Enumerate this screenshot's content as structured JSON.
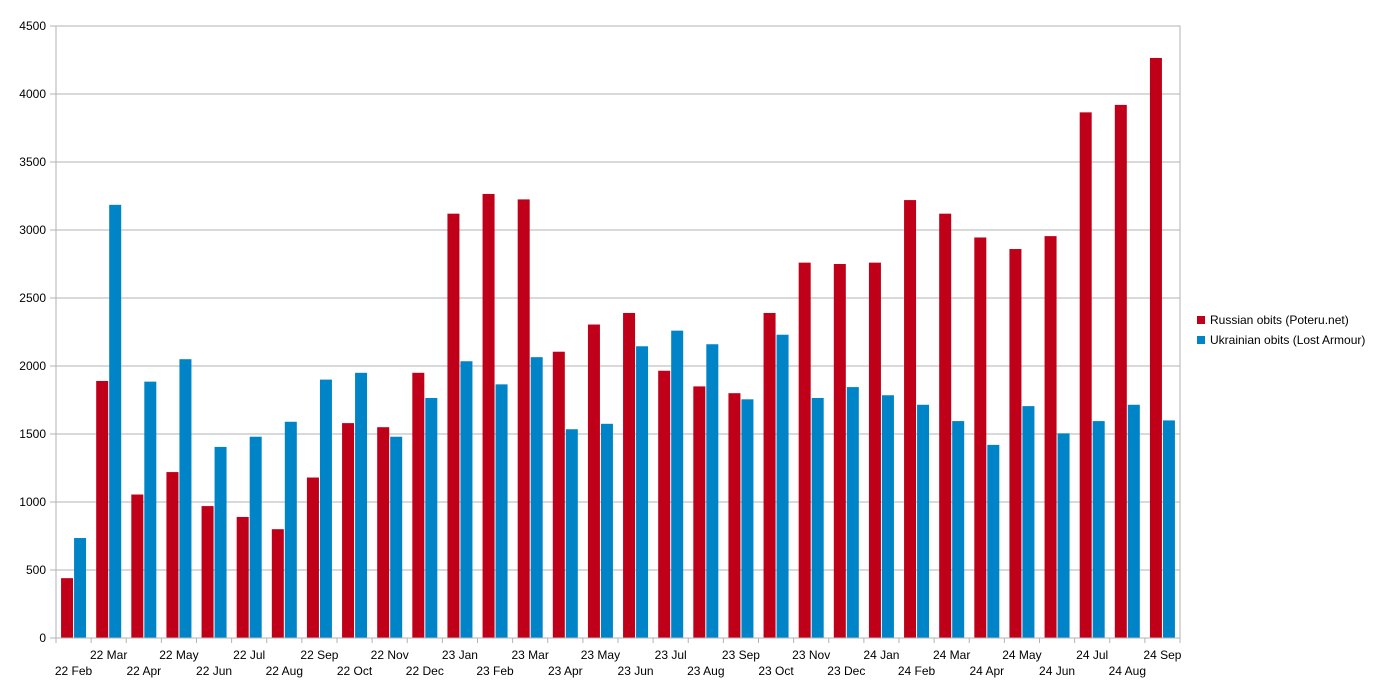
{
  "chart_data": {
    "type": "bar",
    "title": "",
    "xlabel": "",
    "ylabel": "",
    "ylim": [
      0,
      4500
    ],
    "yticks": [
      0,
      500,
      1000,
      1500,
      2000,
      2500,
      3000,
      3500,
      4000,
      4500
    ],
    "grid": true,
    "legend_position": "right",
    "categories": [
      "22 Feb",
      "22 Mar",
      "22 Apr",
      "22 May",
      "22 Jun",
      "22 Jul",
      "22 Aug",
      "22 Sep",
      "22 Oct",
      "22 Nov",
      "22 Dec",
      "23 Jan",
      "23 Feb",
      "23 Mar",
      "23 Apr",
      "23 May",
      "23 Jun",
      "23 Jul",
      "23 Aug",
      "23 Sep",
      "23 Oct",
      "23 Nov",
      "23 Dec",
      "24 Jan",
      "24 Feb",
      "24 Mar",
      "24 Apr",
      "24 May",
      "24 Jun",
      "24 Jul",
      "24 Aug",
      "24 Sep"
    ],
    "series": [
      {
        "name": "Russian obits (Poteru.net)",
        "color": "#c00018",
        "values": [
          440,
          1890,
          1055,
          1220,
          970,
          890,
          800,
          1180,
          1580,
          1550,
          1950,
          3120,
          3265,
          3225,
          2105,
          2305,
          2390,
          1965,
          1850,
          1800,
          2390,
          2760,
          2750,
          2760,
          3220,
          3120,
          2945,
          2860,
          2955,
          3865,
          3920,
          4265
        ]
      },
      {
        "name": "Ukrainian obits (Lost Armour)",
        "color": "#0084c8",
        "values": [
          735,
          3185,
          1885,
          2050,
          1405,
          1480,
          1590,
          1900,
          1950,
          1480,
          1765,
          2035,
          1865,
          2065,
          1535,
          1575,
          2145,
          2260,
          2160,
          1755,
          2230,
          1765,
          1845,
          1785,
          1715,
          1595,
          1420,
          1705,
          1505,
          1595,
          1715,
          1600
        ]
      }
    ]
  }
}
